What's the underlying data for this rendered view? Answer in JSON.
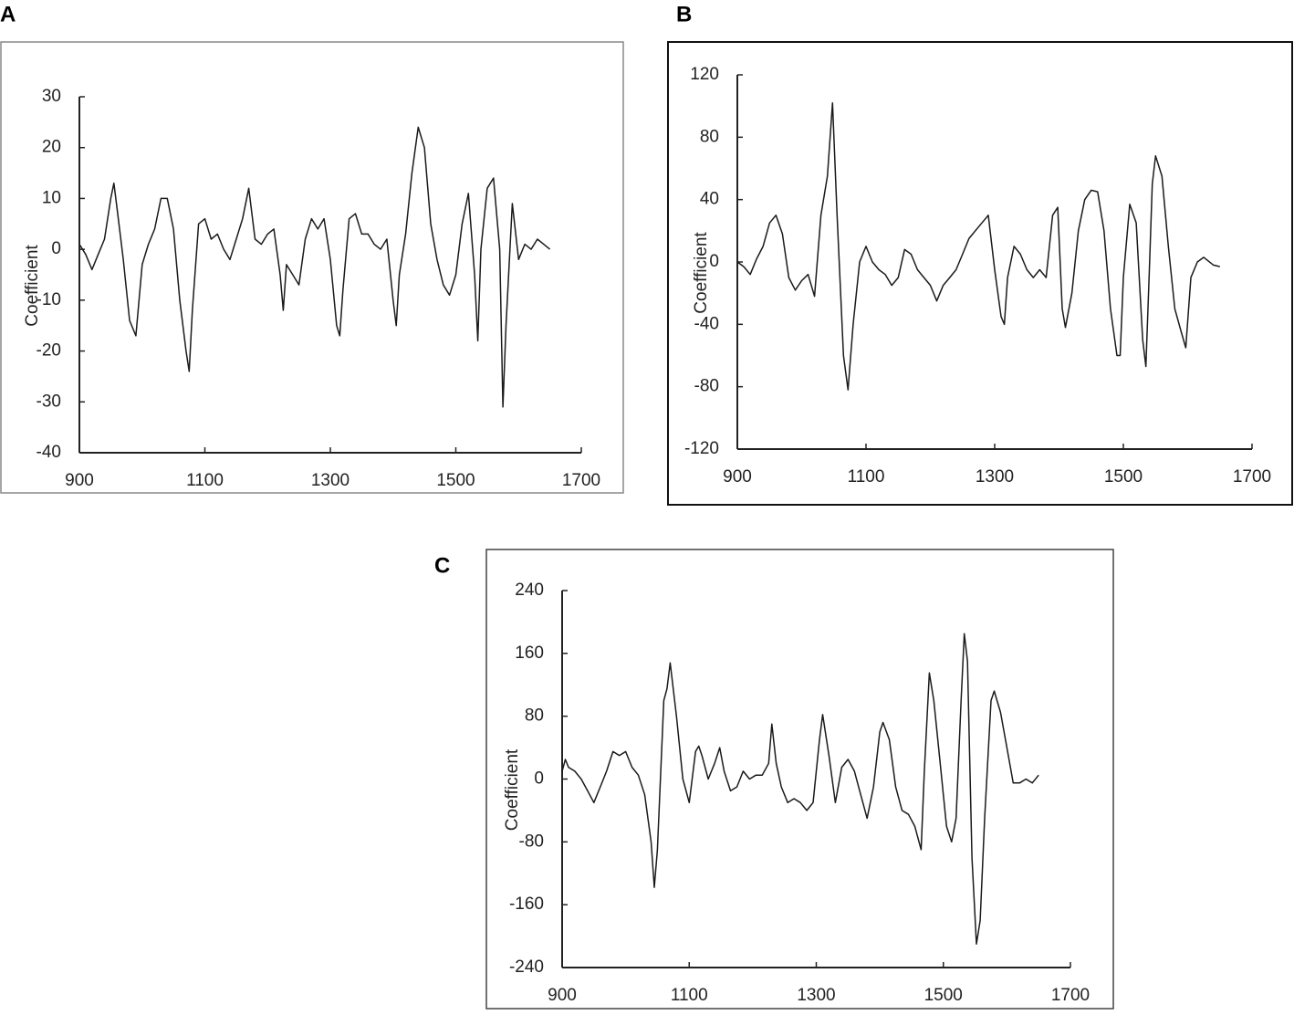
{
  "chart_data": [
    {
      "type": "line",
      "title": "A",
      "ylabel": "Coefficient",
      "color": "#1a1a1a",
      "xlim": [
        900,
        1700
      ],
      "xticks": [
        900,
        1100,
        1300,
        1500,
        1700
      ],
      "ylim": [
        -40,
        30
      ],
      "yticks": [
        -40,
        -30,
        -20,
        -10,
        0,
        10,
        20,
        30
      ],
      "x": [
        900,
        910,
        920,
        930,
        940,
        950,
        955,
        960,
        970,
        980,
        990,
        1000,
        1010,
        1020,
        1030,
        1040,
        1050,
        1060,
        1070,
        1075,
        1080,
        1090,
        1100,
        1110,
        1120,
        1130,
        1140,
        1150,
        1160,
        1170,
        1180,
        1190,
        1200,
        1210,
        1220,
        1225,
        1230,
        1240,
        1250,
        1260,
        1270,
        1280,
        1290,
        1300,
        1310,
        1315,
        1320,
        1330,
        1340,
        1350,
        1360,
        1370,
        1380,
        1390,
        1400,
        1405,
        1410,
        1420,
        1430,
        1440,
        1450,
        1460,
        1470,
        1480,
        1490,
        1500,
        1510,
        1520,
        1530,
        1535,
        1540,
        1550,
        1560,
        1570,
        1575,
        1580,
        1590,
        1600,
        1610,
        1620,
        1630,
        1640,
        1650
      ],
      "values": [
        1,
        -1,
        -4,
        -1,
        2,
        10,
        13,
        8,
        -2,
        -14,
        -17,
        -3,
        1,
        4,
        10,
        10,
        4,
        -10,
        -20,
        -24,
        -12,
        5,
        6,
        2,
        3,
        0,
        -2,
        2,
        6,
        12,
        2,
        1,
        3,
        4,
        -5,
        -12,
        -3,
        -5,
        -7,
        2,
        6,
        4,
        6,
        -2,
        -15,
        -17,
        -8,
        6,
        7,
        3,
        3,
        1,
        0,
        2,
        -10,
        -15,
        -5,
        3,
        15,
        24,
        20,
        5,
        -2,
        -7,
        -9,
        -5,
        5,
        11,
        -5,
        -18,
        0,
        12,
        14,
        0,
        -31,
        -15,
        9,
        -2,
        1,
        0,
        2,
        1,
        0
      ]
    },
    {
      "type": "line",
      "title": "B",
      "ylabel": "Coefficient",
      "color": "#1a1a1a",
      "xlim": [
        900,
        1700
      ],
      "xticks": [
        900,
        1100,
        1300,
        1500,
        1700
      ],
      "ylim": [
        -120,
        120
      ],
      "yticks": [
        -120,
        -80,
        -40,
        0,
        40,
        80,
        120
      ],
      "x": [
        900,
        910,
        920,
        930,
        940,
        950,
        960,
        970,
        980,
        990,
        1000,
        1010,
        1020,
        1030,
        1040,
        1048,
        1055,
        1065,
        1072,
        1080,
        1090,
        1100,
        1110,
        1120,
        1130,
        1140,
        1150,
        1160,
        1170,
        1180,
        1190,
        1200,
        1210,
        1220,
        1230,
        1240,
        1250,
        1260,
        1270,
        1280,
        1290,
        1300,
        1310,
        1315,
        1320,
        1330,
        1340,
        1350,
        1360,
        1370,
        1380,
        1390,
        1398,
        1405,
        1410,
        1420,
        1430,
        1440,
        1450,
        1460,
        1470,
        1480,
        1490,
        1495,
        1500,
        1510,
        1520,
        1530,
        1535,
        1540,
        1545,
        1550,
        1560,
        1570,
        1580,
        1590,
        1597,
        1605,
        1615,
        1625,
        1640,
        1650
      ],
      "values": [
        0,
        -3,
        -8,
        2,
        10,
        25,
        30,
        18,
        -10,
        -18,
        -12,
        -8,
        -22,
        30,
        55,
        102,
        30,
        -60,
        -82,
        -40,
        0,
        10,
        0,
        -5,
        -8,
        -15,
        -10,
        8,
        5,
        -5,
        -10,
        -15,
        -25,
        -15,
        -10,
        -5,
        5,
        15,
        20,
        25,
        30,
        -5,
        -35,
        -40,
        -10,
        10,
        5,
        -5,
        -10,
        -5,
        -10,
        30,
        35,
        -30,
        -42,
        -20,
        20,
        40,
        46,
        45,
        20,
        -30,
        -60,
        -60,
        -10,
        37,
        25,
        -50,
        -67,
        -10,
        50,
        68,
        55,
        10,
        -30,
        -45,
        -55,
        -10,
        0,
        3,
        -2,
        -3
      ]
    },
    {
      "type": "line",
      "title": "C",
      "ylabel": "Coefficient",
      "color": "#1a1a1a",
      "xlim": [
        900,
        1700
      ],
      "xticks": [
        900,
        1100,
        1300,
        1500,
        1700
      ],
      "ylim": [
        -240,
        240
      ],
      "yticks": [
        -240,
        -160,
        -80,
        0,
        80,
        160,
        240
      ],
      "x": [
        900,
        905,
        910,
        920,
        930,
        940,
        950,
        960,
        970,
        980,
        990,
        1000,
        1010,
        1020,
        1030,
        1040,
        1045,
        1050,
        1060,
        1065,
        1070,
        1080,
        1090,
        1100,
        1110,
        1115,
        1120,
        1130,
        1140,
        1148,
        1155,
        1165,
        1175,
        1185,
        1195,
        1205,
        1215,
        1225,
        1230,
        1237,
        1245,
        1255,
        1265,
        1275,
        1285,
        1295,
        1305,
        1310,
        1320,
        1330,
        1340,
        1350,
        1360,
        1370,
        1380,
        1390,
        1400,
        1405,
        1415,
        1425,
        1435,
        1445,
        1455,
        1465,
        1470,
        1478,
        1485,
        1495,
        1505,
        1513,
        1520,
        1528,
        1533,
        1538,
        1545,
        1552,
        1558,
        1565,
        1575,
        1580,
        1590,
        1600,
        1610,
        1620,
        1630,
        1640,
        1650
      ],
      "values": [
        10,
        25,
        15,
        10,
        0,
        -15,
        -30,
        -10,
        10,
        35,
        30,
        35,
        15,
        5,
        -20,
        -80,
        -138,
        -90,
        100,
        115,
        148,
        80,
        0,
        -30,
        35,
        42,
        30,
        0,
        20,
        40,
        10,
        -15,
        -10,
        10,
        0,
        5,
        5,
        20,
        70,
        20,
        -10,
        -30,
        -25,
        -30,
        -40,
        -30,
        50,
        82,
        30,
        -30,
        15,
        25,
        10,
        -20,
        -50,
        -10,
        60,
        72,
        50,
        -10,
        -40,
        -45,
        -60,
        -90,
        10,
        135,
        100,
        20,
        -60,
        -80,
        -50,
        100,
        185,
        150,
        -100,
        -210,
        -180,
        -50,
        100,
        112,
        85,
        40,
        -5,
        -5,
        0,
        -5,
        5
      ]
    }
  ]
}
